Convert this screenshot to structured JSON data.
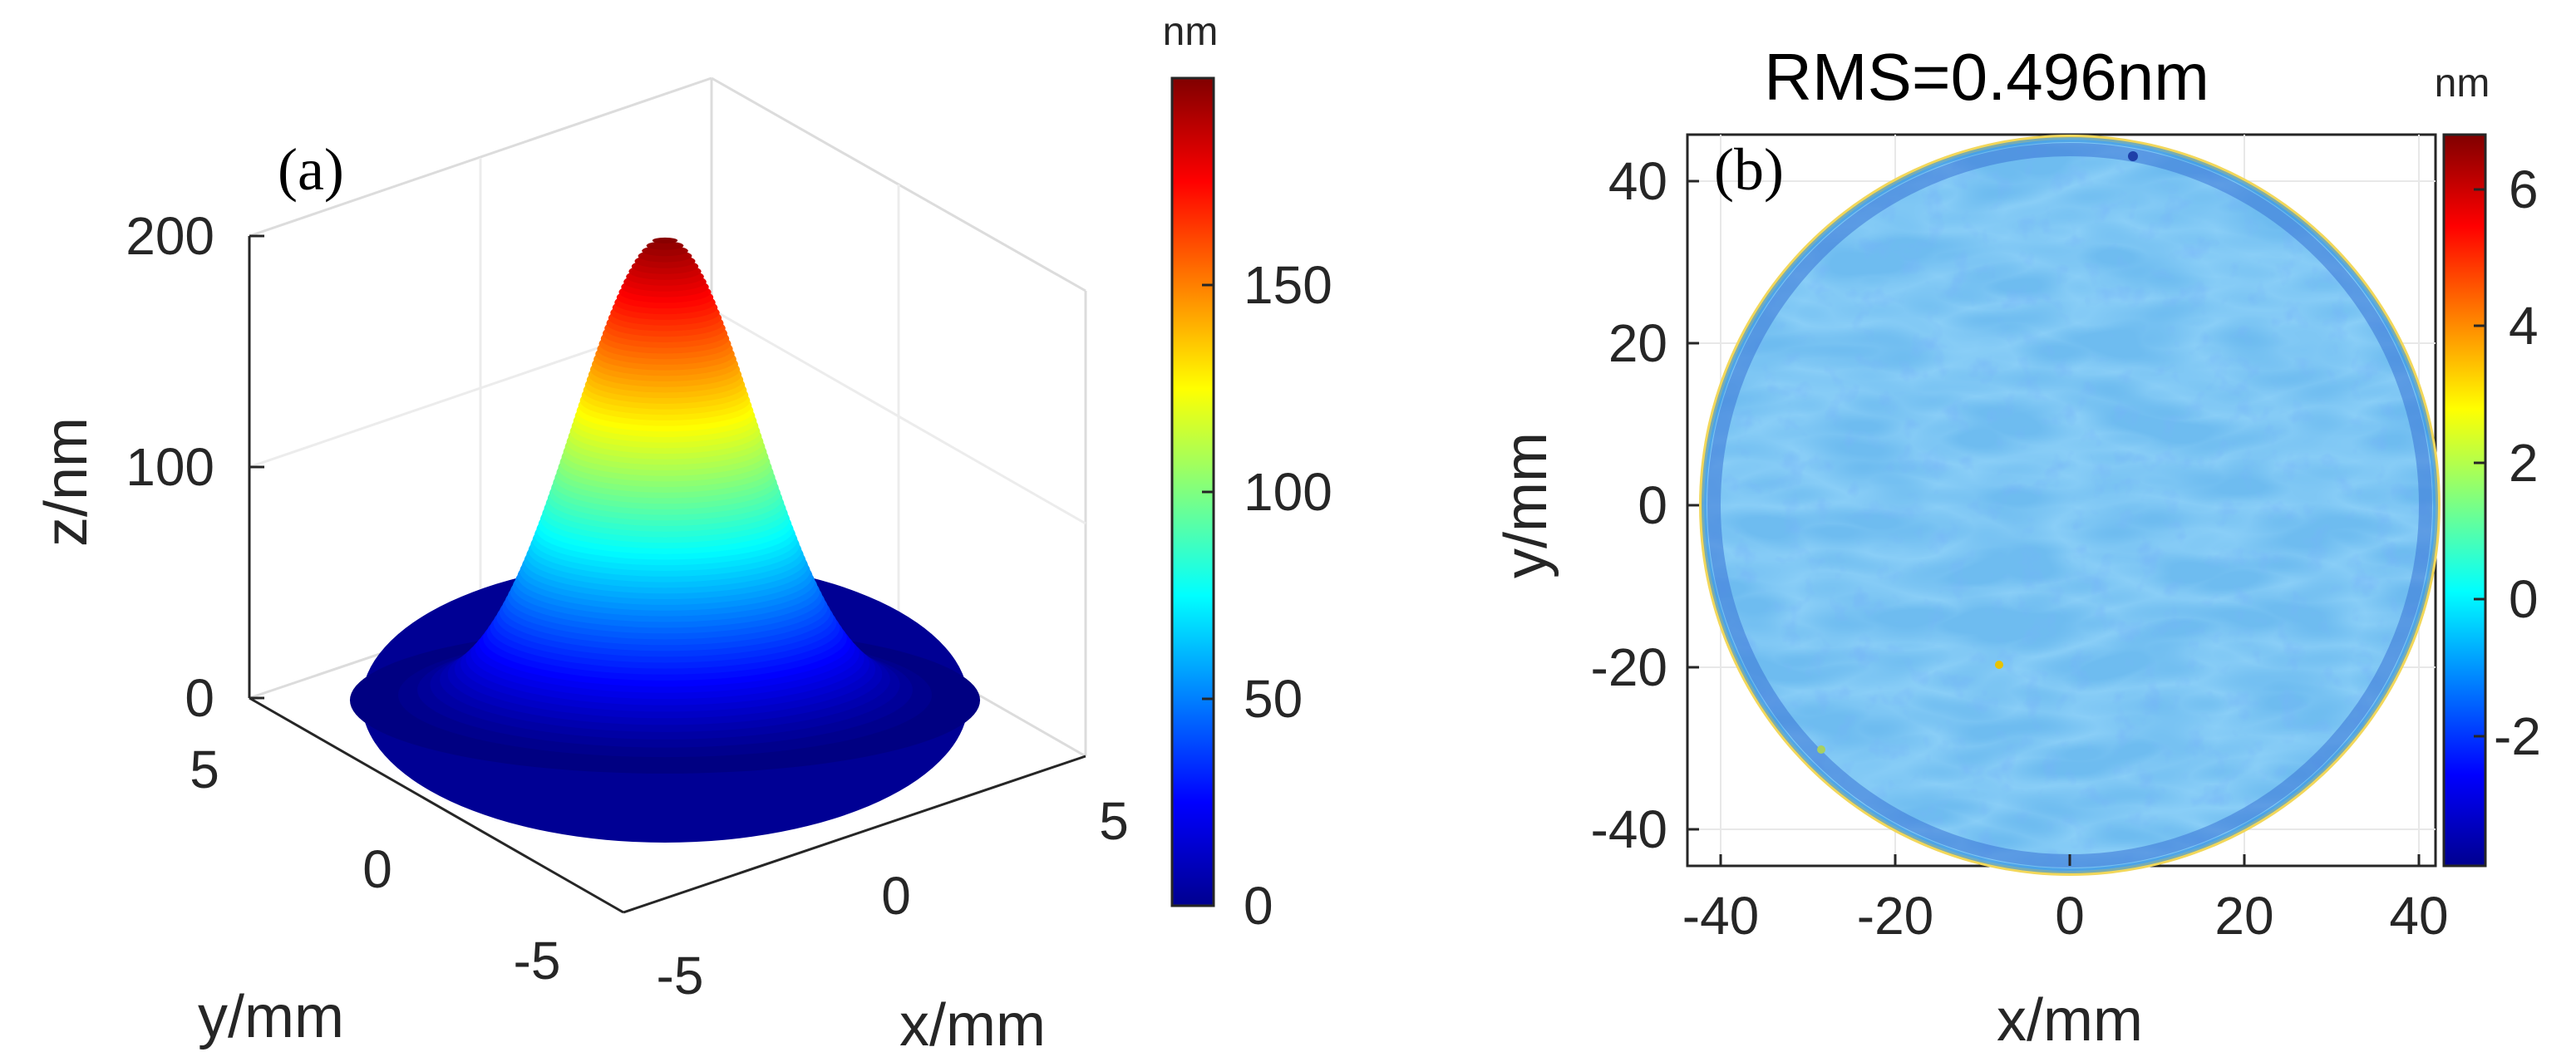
{
  "figure": {
    "panel_a_label": "(a)",
    "panel_b_label": "(b)"
  },
  "chart_data": [
    {
      "type": "surface3d",
      "panel": "(a)",
      "title": "",
      "xlabel": "x/mm",
      "ylabel": "y/mm",
      "zlabel": "z/nm",
      "x_ticks": [
        "-5",
        "0",
        "5"
      ],
      "y_ticks": [
        "-5",
        "0",
        "5"
      ],
      "z_ticks": [
        "0",
        "100",
        "200"
      ],
      "xlim": [
        -7,
        7
      ],
      "ylim": [
        -7,
        7
      ],
      "zlim": [
        0,
        200
      ],
      "surface": {
        "shape": "gaussian",
        "peak_nm": 200,
        "sigma_mm": 1.5,
        "radius_mm": 5,
        "baseline_nm": 0
      },
      "colorbar": {
        "unit": "nm",
        "ticks": [
          "0",
          "50",
          "100",
          "150"
        ],
        "range": [
          0,
          200
        ],
        "colormap": "jet"
      }
    },
    {
      "type": "heatmap",
      "panel": "(b)",
      "title": "RMS=0.496nm",
      "xlabel": "x/mm",
      "ylabel": "y/mm",
      "x_ticks": [
        "-40",
        "-20",
        "0",
        "20",
        "40"
      ],
      "y_ticks": [
        "40",
        "20",
        "0",
        "-20",
        "-40"
      ],
      "xlim": [
        -45,
        45
      ],
      "ylim": [
        -45,
        45
      ],
      "aperture_radius_mm": 44,
      "rms_nm": 0.496,
      "colorbar": {
        "unit": "nm",
        "ticks": [
          "6",
          "4",
          "2",
          "0",
          "-2"
        ],
        "range": [
          -3.7,
          7
        ],
        "colormap": "jet"
      }
    }
  ]
}
